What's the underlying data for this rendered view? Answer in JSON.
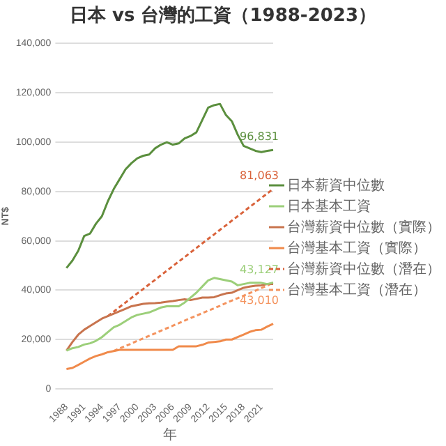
{
  "chart_data": {
    "type": "line",
    "title": "日本 vs 台灣的工資（1988-2023）",
    "xlabel": "年",
    "ylabel": "NT$",
    "categories": [
      "1988",
      null,
      null,
      "1991",
      null,
      null,
      "1994",
      null,
      null,
      "1997",
      null,
      null,
      "2000",
      null,
      null,
      "2003",
      null,
      null,
      "2006",
      null,
      null,
      "2009",
      null,
      null,
      "2012",
      null,
      null,
      "2015",
      null,
      null,
      "2018",
      null,
      null,
      "2021",
      null,
      null
    ],
    "ylim": [
      0,
      140000
    ],
    "yticks": [
      0,
      {
        "value": 20000,
        "label": "20,000"
      },
      {
        "value": 40000,
        "label": "40,000"
      },
      {
        "value": 60000,
        "label": "60,000"
      },
      {
        "value": 80000,
        "label": "80,000"
      },
      {
        "value": 100000,
        "label": "100,000"
      },
      {
        "value": 120000,
        "label": "120,000"
      },
      {
        "value": 140000,
        "label": "140,000"
      }
    ],
    "grid": "y",
    "legend": "right",
    "marker": "none",
    "series": [
      {
        "name": "日本薪資中位數",
        "color": "#5b8f3e",
        "line_style": "solid",
        "values": [
          49000,
          52000,
          56000,
          62000,
          63000,
          67000,
          70000,
          76000,
          81000,
          85000,
          89000,
          91500,
          93500,
          94500,
          95000,
          97500,
          99000,
          100000,
          99000,
          99500,
          101500,
          102500,
          104000,
          109000,
          114000,
          115000,
          115500,
          111000,
          108500,
          103000,
          98500,
          97500,
          96500,
          96000,
          96500,
          96831
        ],
        "value_labels": [
          null,
          null,
          null,
          null,
          null,
          null,
          null,
          null,
          null,
          null,
          null,
          null,
          null,
          null,
          null,
          null,
          null,
          null,
          null,
          null,
          null,
          null,
          null,
          null,
          null,
          null,
          null,
          null,
          null,
          null,
          null,
          null,
          null,
          null,
          null,
          "96,831"
        ]
      },
      {
        "name": "日本基本工資",
        "color": "#9ccf7a",
        "line_style": "solid",
        "values": [
          15500,
          16500,
          17000,
          18000,
          18500,
          19500,
          21000,
          23000,
          25000,
          26000,
          27500,
          29000,
          30000,
          30500,
          31000,
          32000,
          33000,
          33500,
          33500,
          33500,
          35000,
          37000,
          39000,
          41500,
          44000,
          45000,
          44500,
          44000,
          43500,
          42000,
          42500,
          43000,
          43000,
          43000,
          42500,
          43127
        ],
        "value_labels": [
          null,
          null,
          null,
          null,
          null,
          null,
          null,
          null,
          null,
          null,
          null,
          null,
          null,
          null,
          null,
          null,
          null,
          null,
          null,
          null,
          null,
          null,
          null,
          null,
          null,
          null,
          null,
          null,
          null,
          null,
          null,
          null,
          null,
          null,
          null,
          "43,127"
        ]
      },
      {
        "name": "台灣薪資中位數（實際）",
        "color": "#c8744e",
        "line_style": "solid",
        "values": [
          15500,
          19000,
          22000,
          24000,
          25500,
          27000,
          28500,
          29500,
          30500,
          31500,
          32500,
          33500,
          34000,
          34500,
          34700,
          34800,
          35000,
          35300,
          35600,
          36000,
          36300,
          36000,
          36500,
          37000,
          37000,
          37200,
          38000,
          38700,
          39000,
          40000,
          41000,
          41500,
          41800,
          42000,
          42500,
          42500
        ]
      },
      {
        "name": "台灣基本工資（實際）",
        "color": "#f08a4b",
        "line_style": "solid",
        "values": [
          8100,
          8500,
          9750,
          11040,
          12365,
          13350,
          14010,
          14880,
          15360,
          15840,
          15840,
          15840,
          15840,
          15840,
          15840,
          15840,
          15840,
          15840,
          15840,
          17280,
          17280,
          17280,
          17280,
          17880,
          18780,
          19047,
          19273,
          20008,
          20008,
          21009,
          22000,
          23100,
          23800,
          24000,
          25250,
          26400
        ]
      },
      {
        "name": "台灣薪資中位數（潛在）",
        "color": "#d9623a",
        "line_style": "dashed",
        "values": [
          null,
          null,
          null,
          null,
          null,
          null,
          null,
          29500,
          31300,
          33200,
          35000,
          36900,
          38700,
          40500,
          42400,
          44200,
          46100,
          47900,
          49800,
          51600,
          53400,
          55300,
          57100,
          59000,
          60800,
          62600,
          64500,
          66300,
          68200,
          70000,
          71800,
          73700,
          75500,
          77400,
          79200,
          81063
        ],
        "value_labels": [
          null,
          null,
          null,
          null,
          null,
          null,
          null,
          null,
          null,
          null,
          null,
          null,
          null,
          null,
          null,
          null,
          null,
          null,
          null,
          null,
          null,
          null,
          null,
          null,
          null,
          null,
          null,
          null,
          null,
          null,
          null,
          null,
          null,
          null,
          null,
          "81,063"
        ]
      },
      {
        "name": "台灣基本工資（潛在）",
        "color": "#f4935e",
        "line_style": "dashed",
        "values": [
          null,
          null,
          null,
          null,
          null,
          null,
          null,
          null,
          15400,
          16400,
          17400,
          18400,
          19500,
          20500,
          21500,
          22500,
          23600,
          24600,
          25600,
          26600,
          27700,
          28700,
          29700,
          30700,
          31700,
          32700,
          33700,
          34800,
          35800,
          36800,
          37800,
          38800,
          39800,
          40900,
          41900,
          43010
        ],
        "value_labels": [
          null,
          null,
          null,
          null,
          null,
          null,
          null,
          null,
          null,
          null,
          null,
          null,
          null,
          null,
          null,
          null,
          null,
          null,
          null,
          null,
          null,
          null,
          null,
          null,
          null,
          null,
          null,
          null,
          null,
          null,
          null,
          null,
          null,
          null,
          null,
          "43,010"
        ]
      }
    ]
  }
}
